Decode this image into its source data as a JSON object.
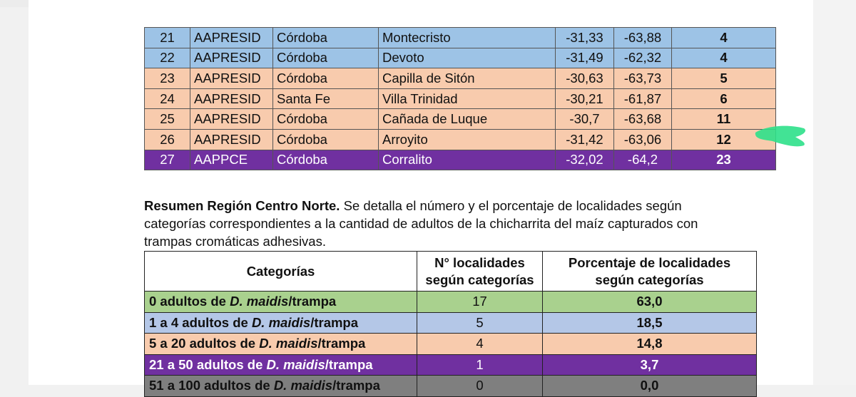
{
  "top_table": {
    "rows": [
      {
        "n": "21",
        "org": "AAPRESID",
        "prov": "Córdoba",
        "loc": "Montecristo",
        "lat": "-31,33",
        "lon": "-63,88",
        "count": "4",
        "color": "blue"
      },
      {
        "n": "22",
        "org": "AAPRESID",
        "prov": "Córdoba",
        "loc": "Devoto",
        "lat": "-31,49",
        "lon": "-62,32",
        "count": "4",
        "color": "blue"
      },
      {
        "n": "23",
        "org": "AAPRESID",
        "prov": "Córdoba",
        "loc": "Capilla de Sitón",
        "lat": "-30,63",
        "lon": "-63,73",
        "count": "5",
        "color": "orange"
      },
      {
        "n": "24",
        "org": "AAPRESID",
        "prov": "Santa Fe",
        "loc": "Villa Trinidad",
        "lat": "-30,21",
        "lon": "-61,87",
        "count": "6",
        "color": "orange"
      },
      {
        "n": "25",
        "org": "AAPRESID",
        "prov": "Córdoba",
        "loc": "Cañada de Luque",
        "lat": "-30,7",
        "lon": "-63,68",
        "count": "11",
        "color": "orange"
      },
      {
        "n": "26",
        "org": "AAPRESID",
        "prov": "Córdoba",
        "loc": "Arroyito",
        "lat": "-31,42",
        "lon": "-63,06",
        "count": "12",
        "color": "orange"
      },
      {
        "n": "27",
        "org": "AAPPCE",
        "prov": "Córdoba",
        "loc": "Corralito",
        "lat": "-32,02",
        "lon": "-64,2",
        "count": "23",
        "color": "purple"
      }
    ]
  },
  "summary": {
    "bold": "Resumen Región Centro Norte.",
    "text": " Se detalla el número y el porcentaje de localidades según categorías correspondientes a la cantidad de adultos de la chicharrita del maíz capturados con trampas cromáticas adhesivas."
  },
  "summary_table": {
    "headers": {
      "col1": "Categorías",
      "col2_line1": "N° localidades",
      "col2_line2": "según categorías",
      "col3_line1": "Porcentaje de localidades",
      "col3_line2": "según categorías"
    },
    "rows": [
      {
        "pre": "0 adultos de ",
        "species": "D. maidis",
        "post": "/trampa",
        "n": "17",
        "pct": "63,0",
        "color": "green"
      },
      {
        "pre": "1 a 4 adultos de ",
        "species": "D. maidis",
        "post": "/trampa",
        "n": "5",
        "pct": "18,5",
        "color": "blue"
      },
      {
        "pre": "5 a 20 adultos de ",
        "species": "D. maidis",
        "post": "/trampa",
        "n": "4",
        "pct": "14,8",
        "color": "orange"
      },
      {
        "pre": "21 a 50 adultos de ",
        "species": "D. maidis",
        "post": "/trampa",
        "n": "1",
        "pct": "3,7",
        "color": "purple"
      },
      {
        "pre": "51 a 100 adultos de ",
        "species": "D. maidis",
        "post": "/trampa",
        "n": "0",
        "pct": "0,0",
        "color": "gray"
      }
    ]
  },
  "colors": {
    "blue": "#9dc3e6",
    "orange": "#f8cbad",
    "purple": "#7030a0",
    "green": "#a9d18e",
    "highlight": "#2ee08a"
  }
}
